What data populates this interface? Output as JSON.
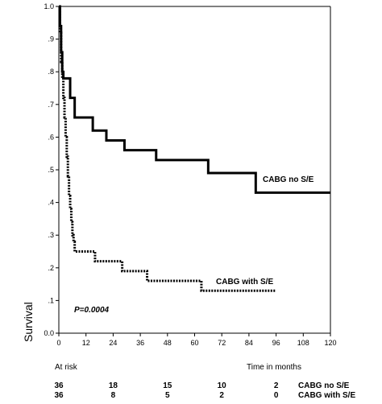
{
  "chart_data": {
    "type": "line",
    "title": "",
    "ylabel": "Survival",
    "xlabel": "Time in months",
    "xlim": [
      0,
      120
    ],
    "ylim": [
      0,
      1.0
    ],
    "x_ticks": [
      0,
      12,
      24,
      36,
      48,
      60,
      72,
      84,
      96,
      108,
      120
    ],
    "y_ticks": [
      {
        "value": 0.0,
        "label": "0.0"
      },
      {
        "value": 0.1,
        "label": ".1"
      },
      {
        "value": 0.2,
        "label": ".2"
      },
      {
        "value": 0.3,
        "label": ".3"
      },
      {
        "value": 0.4,
        "label": ".4"
      },
      {
        "value": 0.5,
        "label": ".5"
      },
      {
        "value": 0.6,
        "label": ".6"
      },
      {
        "value": 0.7,
        "label": ".7"
      },
      {
        "value": 0.8,
        "label": ".8"
      },
      {
        "value": 0.9,
        "label": ".9"
      },
      {
        "value": 1.0,
        "label": "1.0"
      }
    ],
    "grid": false,
    "annotation": "P=0.0004",
    "series": [
      {
        "name": "CABG no S/E",
        "style": "solid",
        "color": "#000000",
        "steps": [
          [
            0,
            1.0
          ],
          [
            0.5,
            0.94
          ],
          [
            1,
            0.86
          ],
          [
            1.5,
            0.8
          ],
          [
            2,
            0.78
          ],
          [
            5,
            0.72
          ],
          [
            7,
            0.66
          ],
          [
            15,
            0.62
          ],
          [
            21,
            0.59
          ],
          [
            29,
            0.56
          ],
          [
            43,
            0.53
          ],
          [
            66,
            0.49
          ],
          [
            87,
            0.43
          ],
          [
            120,
            0.43
          ]
        ]
      },
      {
        "name": "CABG with S/E",
        "style": "dotted",
        "color": "#000000",
        "steps": [
          [
            0,
            1.0
          ],
          [
            0.5,
            0.92
          ],
          [
            1,
            0.83
          ],
          [
            1.5,
            0.78
          ],
          [
            2,
            0.72
          ],
          [
            2.5,
            0.66
          ],
          [
            3,
            0.6
          ],
          [
            3.5,
            0.54
          ],
          [
            4,
            0.48
          ],
          [
            4.5,
            0.42
          ],
          [
            5,
            0.38
          ],
          [
            5.5,
            0.34
          ],
          [
            6,
            0.3
          ],
          [
            6.5,
            0.28
          ],
          [
            7,
            0.25
          ],
          [
            16,
            0.22
          ],
          [
            28,
            0.19
          ],
          [
            39,
            0.16
          ],
          [
            63,
            0.13
          ],
          [
            96,
            0.13
          ]
        ]
      }
    ]
  },
  "at_risk": {
    "label": "At risk",
    "time_label": "Time in months",
    "times": [
      0,
      24,
      48,
      72,
      96
    ],
    "rows": [
      {
        "name": "CABG no S/E",
        "values": [
          "36",
          "18",
          "15",
          "10",
          "2"
        ]
      },
      {
        "name": "CABG with S/E",
        "values": [
          "36",
          "8",
          "5",
          "2",
          "0"
        ]
      }
    ]
  }
}
